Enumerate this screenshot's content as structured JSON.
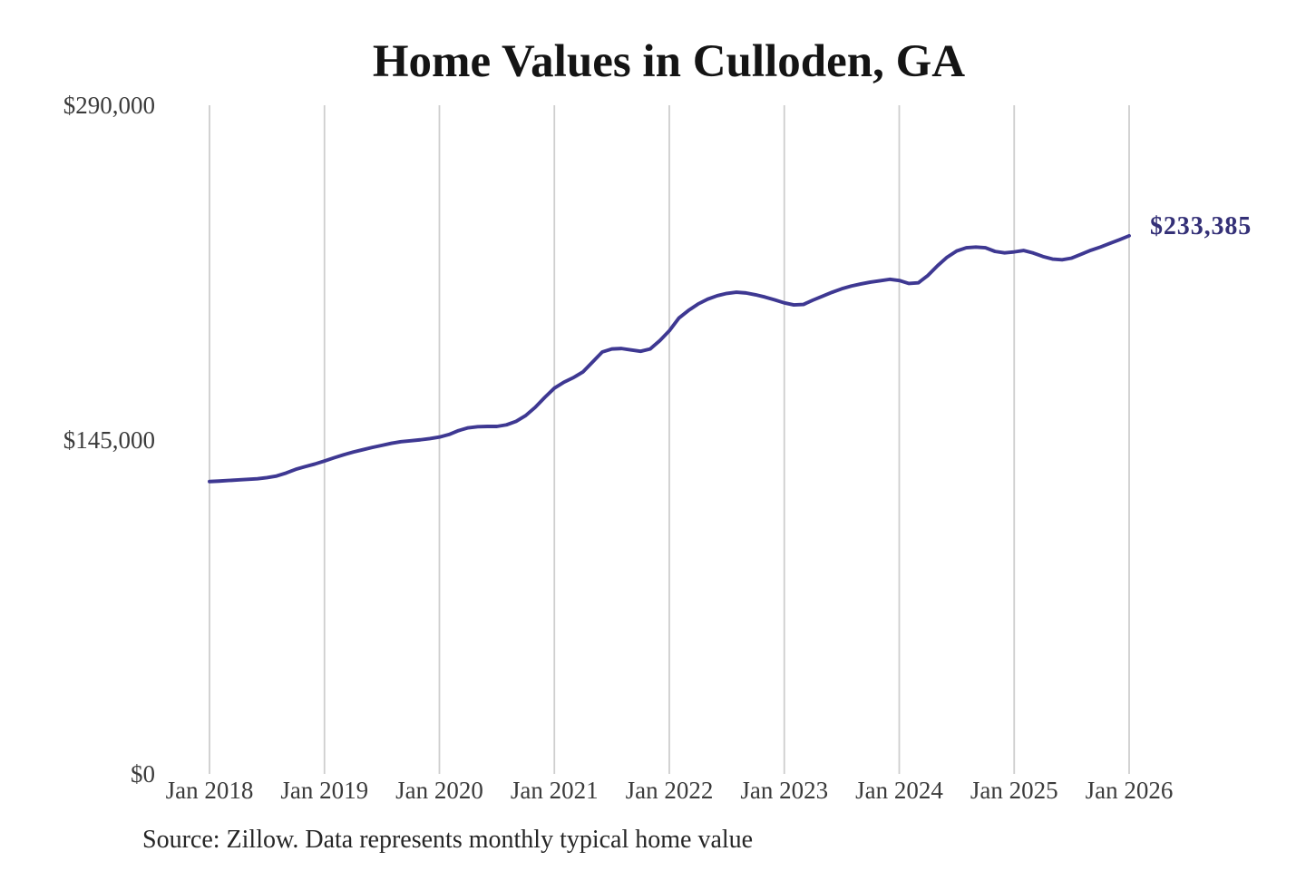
{
  "title": "Home Values in Culloden, GA",
  "source_note": "Source: Zillow. Data represents monthly typical home value",
  "end_label": "$233,385",
  "colors": {
    "line": "#3e3892",
    "end_label": "#343077",
    "grid": "#cecece",
    "title": "#141414",
    "tick": "#3b3b3b",
    "source": "#262626",
    "background": "#ffffff"
  },
  "chart_data": {
    "type": "line",
    "title": "Home Values in Culloden, GA",
    "xlabel": "",
    "ylabel": "",
    "ylim": [
      0,
      290000
    ],
    "grid": "vertical-only",
    "legend": "none",
    "series_name": "Monthly typical home value (Zillow)",
    "annotation": {
      "label": "$233,385",
      "position": "right-of-last-point"
    },
    "yticks": [
      {
        "value": 290000,
        "label": "$290,000"
      },
      {
        "value": 145000,
        "label": "$145,000"
      },
      {
        "value": 0,
        "label": "$0"
      }
    ],
    "xticks": [
      {
        "month_index": 0,
        "label": "Jan 2018"
      },
      {
        "month_index": 12,
        "label": "Jan 2019"
      },
      {
        "month_index": 24,
        "label": "Jan 2020"
      },
      {
        "month_index": 36,
        "label": "Jan 2021"
      },
      {
        "month_index": 48,
        "label": "Jan 2022"
      },
      {
        "month_index": 60,
        "label": "Jan 2023"
      },
      {
        "month_index": 72,
        "label": "Jan 2024"
      },
      {
        "month_index": 84,
        "label": "Jan 2025"
      },
      {
        "month_index": 96,
        "label": "Jan 2026"
      }
    ],
    "x": [
      "2018-01",
      "2018-02",
      "2018-03",
      "2018-04",
      "2018-05",
      "2018-06",
      "2018-07",
      "2018-08",
      "2018-09",
      "2018-10",
      "2018-11",
      "2018-12",
      "2019-01",
      "2019-02",
      "2019-03",
      "2019-04",
      "2019-05",
      "2019-06",
      "2019-07",
      "2019-08",
      "2019-09",
      "2019-10",
      "2019-11",
      "2019-12",
      "2020-01",
      "2020-02",
      "2020-03",
      "2020-04",
      "2020-05",
      "2020-06",
      "2020-07",
      "2020-08",
      "2020-09",
      "2020-10",
      "2020-11",
      "2020-12",
      "2021-01",
      "2021-02",
      "2021-03",
      "2021-04",
      "2021-05",
      "2021-06",
      "2021-07",
      "2021-08",
      "2021-09",
      "2021-10",
      "2021-11",
      "2021-12",
      "2022-01",
      "2022-02",
      "2022-03",
      "2022-04",
      "2022-05",
      "2022-06",
      "2022-07",
      "2022-08",
      "2022-09",
      "2022-10",
      "2022-11",
      "2022-12",
      "2023-01",
      "2023-02",
      "2023-03",
      "2023-04",
      "2023-05",
      "2023-06",
      "2023-07",
      "2023-08",
      "2023-09",
      "2023-10",
      "2023-11",
      "2023-12",
      "2024-01",
      "2024-02",
      "2024-03",
      "2024-04",
      "2024-05",
      "2024-06",
      "2024-07",
      "2024-08",
      "2024-09",
      "2024-10",
      "2024-11",
      "2024-12",
      "2025-01",
      "2025-02",
      "2025-03",
      "2025-04",
      "2025-05",
      "2025-06",
      "2025-07",
      "2025-08",
      "2025-09",
      "2025-10",
      "2025-11",
      "2025-12",
      "2026-01"
    ],
    "values": [
      126800,
      127000,
      127250,
      127500,
      127750,
      128000,
      128500,
      129200,
      130500,
      132100,
      133300,
      134400,
      135700,
      137100,
      138400,
      139600,
      140600,
      141600,
      142500,
      143400,
      144100,
      144500,
      144900,
      145400,
      146100,
      147200,
      148900,
      150100,
      150600,
      150700,
      150700,
      151400,
      152900,
      155400,
      159000,
      163300,
      167300,
      169900,
      171900,
      174400,
      178700,
      183000,
      184300,
      184500,
      183900,
      183300,
      184300,
      187900,
      192200,
      197700,
      201000,
      203800,
      205900,
      207400,
      208400,
      208900,
      208600,
      207800,
      206800,
      205600,
      204300,
      203400,
      203600,
      205500,
      207200,
      208900,
      210400,
      211600,
      212500,
      213300,
      213900,
      214500,
      214000,
      212700,
      213000,
      216200,
      220400,
      224100,
      226800,
      228200,
      228500,
      228200,
      226600,
      226000,
      226400,
      227000,
      225900,
      224400,
      223300,
      223000,
      223700,
      225400,
      227100,
      228500,
      230100,
      231700,
      233385
    ]
  }
}
